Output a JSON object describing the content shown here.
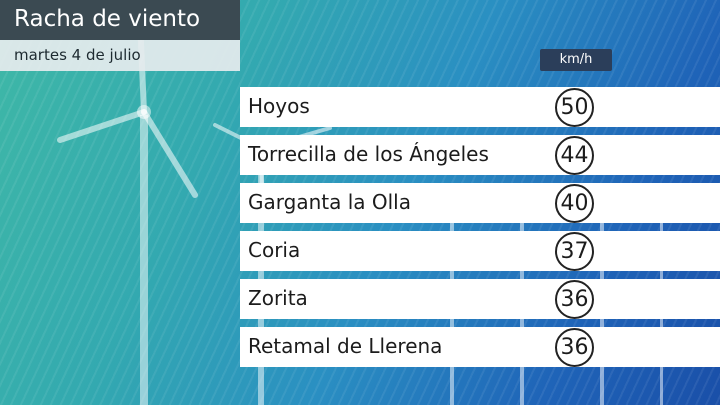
{
  "header": {
    "title": "Racha de viento",
    "subtitle": "martes 4 de julio",
    "unit": "km/h"
  },
  "rows": [
    {
      "name": "Hoyos",
      "value": "50"
    },
    {
      "name": "Torrecilla de los Ángeles",
      "value": "44"
    },
    {
      "name": "Garganta la Olla",
      "value": "40"
    },
    {
      "name": "Coria",
      "value": "37"
    },
    {
      "name": "Zorita",
      "value": "36"
    },
    {
      "name": "Retamal de Llerena",
      "value": "36"
    }
  ],
  "colors": {
    "title_bg": "#3b4a52",
    "unit_bg": "#2b3e5a",
    "row_bg": "#ffffff"
  }
}
